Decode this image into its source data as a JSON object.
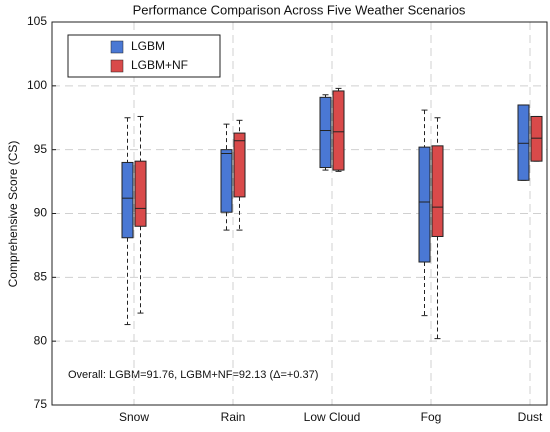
{
  "chart_data": {
    "type": "box",
    "title": "Performance Comparison Across Five Weather Scenarios",
    "ylabel": "Comprehensive Score (CS)",
    "annotation": "Overall: LGBM=91.76, LGBM+NF=92.13 (Δ=+0.37)",
    "categories": [
      "Snow",
      "Rain",
      "Low Cloud",
      "Fog",
      "Dust"
    ],
    "ylim": [
      75,
      105
    ],
    "yticks": [
      75,
      80,
      85,
      90,
      95,
      100,
      105
    ],
    "grid": true,
    "legend": "upper left",
    "series": [
      {
        "name": "LGBM",
        "color": "#4a78d4",
        "values": [
          {
            "min": 81.3,
            "q1": 88.1,
            "median": 91.2,
            "q3": 94.0,
            "max": 97.5
          },
          {
            "min": 88.7,
            "q1": 90.1,
            "median": 94.7,
            "q3": 95.0,
            "max": 97.0
          },
          {
            "min": 93.4,
            "q1": 93.6,
            "median": 96.5,
            "q3": 99.1,
            "max": 99.3
          },
          {
            "min": 82.0,
            "q1": 86.2,
            "median": 90.9,
            "q3": 95.2,
            "max": 98.1
          },
          {
            "min": 92.6,
            "q1": 92.6,
            "median": 95.5,
            "q3": 98.5,
            "max": 98.5
          }
        ]
      },
      {
        "name": "LGBM+NF",
        "color": "#d94a4a",
        "values": [
          {
            "min": 82.2,
            "q1": 89.0,
            "median": 90.4,
            "q3": 94.1,
            "max": 97.6
          },
          {
            "min": 88.7,
            "q1": 91.3,
            "median": 95.7,
            "q3": 96.3,
            "max": 97.3
          },
          {
            "min": 93.3,
            "q1": 93.4,
            "median": 96.4,
            "q3": 99.6,
            "max": 99.8
          },
          {
            "min": 80.2,
            "q1": 88.2,
            "median": 90.5,
            "q3": 95.3,
            "max": 97.5
          },
          {
            "min": 94.1,
            "q1": 94.1,
            "median": 95.9,
            "q3": 97.6,
            "max": 97.6
          }
        ]
      }
    ]
  }
}
